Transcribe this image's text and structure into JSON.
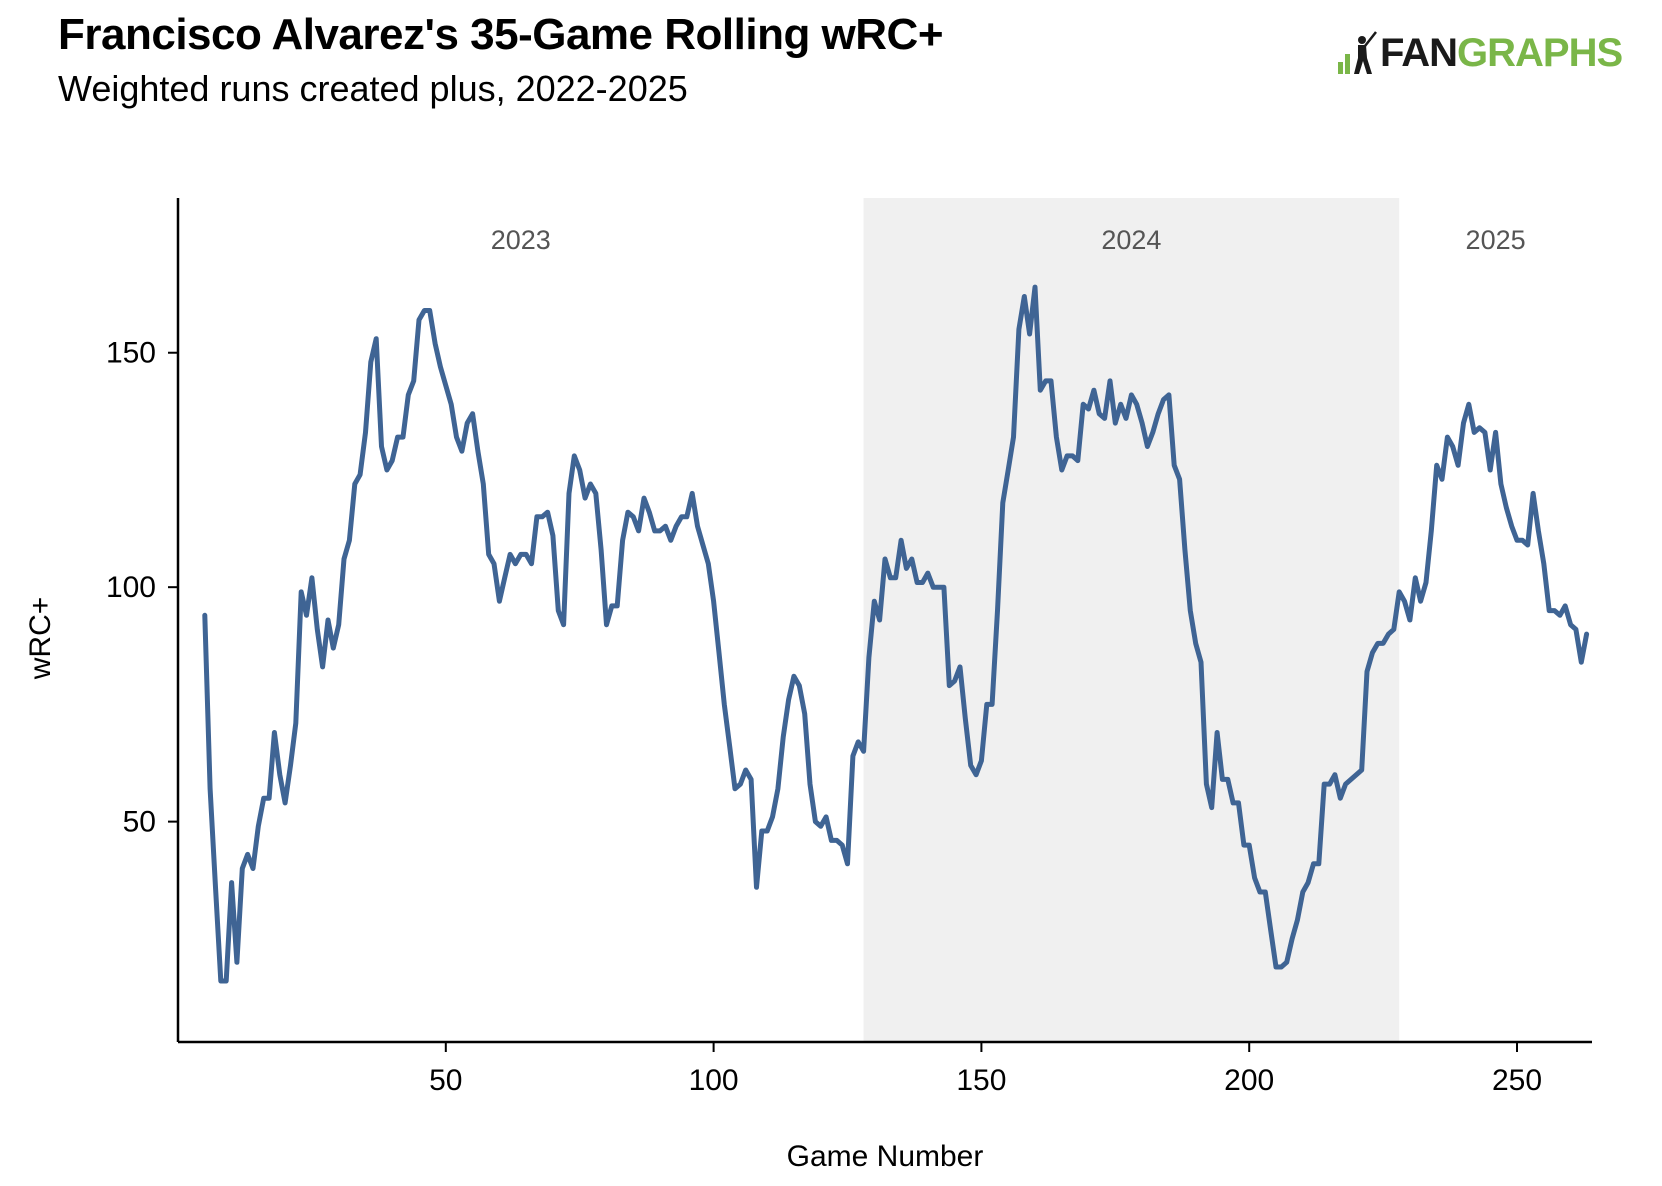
{
  "header": {
    "title": "Francisco Alvarez's 35-Game Rolling wRC+",
    "subtitle": "Weighted runs created plus, 2022-2025"
  },
  "logo": {
    "word_fan": "FAN",
    "word_graphs": "GRAPHS",
    "fan_color": "#1a1a1a",
    "graphs_color": "#7ab648"
  },
  "chart_data": {
    "type": "line",
    "title": "Francisco Alvarez's 35-Game Rolling wRC+",
    "subtitle": "Weighted runs created plus, 2022-2025",
    "xlabel": "Game Number",
    "ylabel": "wRC+",
    "xlim": [
      0,
      264
    ],
    "ylim": [
      3,
      183
    ],
    "xticks": [
      50,
      100,
      150,
      200,
      250
    ],
    "yticks": [
      50,
      100,
      150
    ],
    "grid": false,
    "line_color": "#3f6494",
    "shade_color": "#f0f0f0",
    "seasons": [
      {
        "label": "2023",
        "start": 0,
        "end": 128,
        "shaded": false
      },
      {
        "label": "2024",
        "start": 128,
        "end": 228,
        "shaded": true
      },
      {
        "label": "2025",
        "start": 228,
        "end": 264,
        "shaded": false
      }
    ],
    "series": [
      {
        "x": [
          5,
          6,
          7,
          8,
          9,
          10,
          11,
          12,
          13,
          14,
          15,
          16,
          17,
          18,
          19,
          20,
          21,
          22,
          23,
          24,
          25,
          26,
          27,
          28,
          29,
          30,
          31,
          32,
          33,
          34,
          35,
          36,
          37,
          38,
          39,
          40,
          41,
          42,
          43,
          44,
          45,
          46,
          47,
          48,
          49,
          50,
          51,
          52,
          53,
          54,
          55,
          56,
          57,
          58,
          59,
          60,
          61,
          62,
          63,
          64,
          65,
          66,
          67,
          68,
          69,
          70,
          71,
          72,
          73,
          74,
          75,
          76,
          77,
          78,
          79,
          80,
          81,
          82,
          83,
          84,
          85,
          86,
          87,
          88,
          89,
          90,
          91,
          92,
          93,
          94,
          95,
          96,
          97,
          98,
          99,
          100,
          101,
          102,
          103,
          104,
          105,
          106,
          107,
          108,
          109,
          110,
          111,
          112,
          113,
          114,
          115,
          116,
          117,
          118,
          119,
          120,
          121,
          122,
          123,
          124,
          125,
          126,
          127,
          128,
          129,
          130,
          131,
          132,
          133,
          134,
          135,
          136,
          137,
          138,
          139,
          140,
          141,
          142,
          143,
          144,
          145,
          146,
          147,
          148,
          149,
          150,
          151,
          152,
          153,
          154,
          155,
          156,
          157,
          158,
          159,
          160,
          161,
          162,
          163,
          164,
          165,
          166,
          167,
          168,
          169,
          170,
          171,
          172,
          173,
          174,
          175,
          176,
          177,
          178,
          179,
          180,
          181,
          182,
          183,
          184,
          185,
          186,
          187,
          188,
          189,
          190,
          191,
          192,
          193,
          194,
          195,
          196,
          197,
          198,
          199,
          200,
          201,
          202,
          203,
          204,
          205,
          206,
          207,
          208,
          209,
          210,
          211,
          212,
          213,
          214,
          215,
          216,
          217,
          218,
          219,
          220,
          221,
          222,
          223,
          224,
          225,
          226,
          227,
          228,
          229,
          230,
          231,
          232,
          233,
          234,
          235,
          236,
          237,
          238,
          239,
          240,
          241,
          242,
          243,
          244,
          245,
          246,
          247,
          248,
          249,
          250,
          251,
          252,
          253,
          254,
          255,
          256,
          257,
          258,
          259,
          260,
          261,
          262,
          263
        ],
        "y": [
          94,
          57,
          36,
          16,
          16,
          37,
          20,
          40,
          43,
          40,
          49,
          55,
          55,
          69,
          60,
          54,
          62,
          71,
          99,
          94,
          102,
          91,
          83,
          93,
          87,
          92,
          106,
          110,
          122,
          124,
          133,
          148,
          153,
          130,
          125,
          127,
          132,
          132,
          141,
          144,
          157,
          159,
          159,
          152,
          147,
          143,
          139,
          132,
          129,
          135,
          137,
          129,
          122,
          107,
          105,
          97,
          102,
          107,
          105,
          107,
          107,
          105,
          115,
          115,
          116,
          111,
          95,
          92,
          120,
          128,
          125,
          119,
          122,
          120,
          108,
          92,
          96,
          96,
          110,
          116,
          115,
          112,
          119,
          116,
          112,
          112,
          113,
          110,
          113,
          115,
          115,
          120,
          113,
          109,
          105,
          97,
          86,
          75,
          66,
          57,
          58,
          61,
          59,
          36,
          48,
          48,
          51,
          57,
          68,
          76,
          81,
          79,
          73,
          58,
          50,
          49,
          51,
          46,
          46,
          45,
          41,
          64,
          67,
          65,
          85,
          97,
          93,
          106,
          102,
          102,
          110,
          104,
          106,
          101,
          101,
          103,
          100,
          100,
          100,
          79,
          80,
          83,
          72,
          62,
          60,
          63,
          75,
          75,
          95,
          118,
          125,
          132,
          155,
          162,
          154,
          164,
          142,
          144,
          144,
          132,
          125,
          128,
          128,
          127,
          139,
          138,
          142,
          137,
          136,
          144,
          135,
          139,
          136,
          141,
          139,
          135,
          130,
          133,
          137,
          140,
          141,
          126,
          123,
          108,
          95,
          88,
          84,
          58,
          53,
          69,
          59,
          59,
          54,
          54,
          45,
          45,
          38,
          35,
          35,
          27,
          19,
          19,
          20,
          25,
          29,
          35,
          37,
          41,
          41,
          58,
          58,
          60,
          55,
          58,
          59,
          60,
          61,
          82,
          86,
          88,
          88,
          90,
          91,
          99,
          97,
          93,
          102,
          97,
          101,
          112,
          126,
          123,
          132,
          130,
          126,
          135,
          139,
          133,
          134,
          133,
          125,
          133,
          122,
          117,
          113,
          110,
          110,
          109,
          120,
          112,
          105,
          95,
          95,
          94,
          96,
          92,
          91,
          84,
          90
        ]
      }
    ]
  }
}
